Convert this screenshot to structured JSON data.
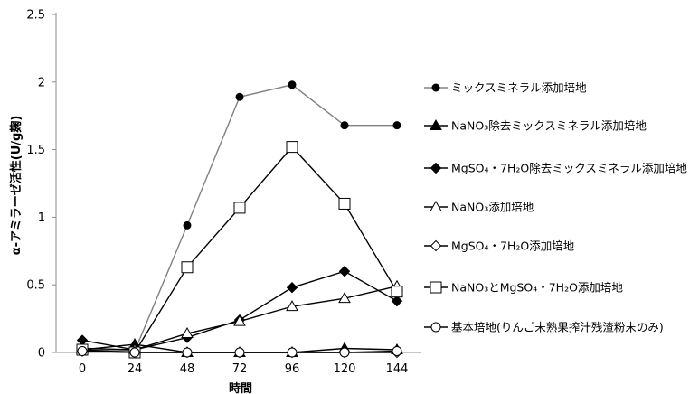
{
  "chart_data": {
    "type": "line",
    "xlabel": "時間",
    "ylabel": "α-アミラーゼ活性(U/g麹)",
    "x": [
      0,
      24,
      48,
      72,
      96,
      120,
      144
    ],
    "ylim": [
      0,
      2.5
    ],
    "yticks": [
      0,
      0.5,
      1,
      1.5,
      2,
      2.5
    ],
    "yticklabels": [
      "0",
      "0.5",
      "1",
      "1.5",
      "2",
      "2.5"
    ],
    "grid": false,
    "legend_position": "right",
    "series": [
      {
        "name": "ミックスミネラル添加培地",
        "marker": "circle-filled",
        "color": "#808080",
        "values": [
          0.02,
          0.01,
          0.94,
          1.89,
          1.98,
          1.68,
          1.68
        ]
      },
      {
        "name": "NaNO₃除去ミックスミネラル添加培地",
        "marker": "triangle-filled",
        "color": "#000000",
        "values": [
          0.02,
          0.06,
          0.0,
          0.0,
          0.0,
          0.03,
          0.02
        ]
      },
      {
        "name": "MgSO₄・7H₂O除去ミックスミネラル添加培地",
        "marker": "diamond-filled",
        "color": "#000000",
        "values": [
          0.09,
          0.02,
          0.11,
          0.24,
          0.48,
          0.6,
          0.38
        ]
      },
      {
        "name": "NaNO₃添加培地",
        "marker": "triangle-open",
        "color": "#000000",
        "values": [
          0.03,
          0.02,
          0.14,
          0.23,
          0.34,
          0.4,
          0.49
        ]
      },
      {
        "name": "MgSO₄・7H₂O添加培地",
        "marker": "diamond-open",
        "color": "#000000",
        "values": [
          0.01,
          0.0,
          0.0,
          0.0,
          0.0,
          0.0,
          0.0
        ]
      },
      {
        "name": "NaNO₃とMgSO₄・7H₂O添加培地",
        "marker": "square-open",
        "color": "#000000",
        "values": [
          0.02,
          0.0,
          0.63,
          1.07,
          1.52,
          1.1,
          0.45
        ]
      },
      {
        "name": "基本培地(りんご未熟果搾汁残渣粉末のみ)",
        "marker": "circle-open",
        "color": "#000000",
        "values": [
          0.01,
          0.0,
          0.0,
          0.0,
          0.0,
          0.0,
          0.01
        ]
      }
    ]
  }
}
